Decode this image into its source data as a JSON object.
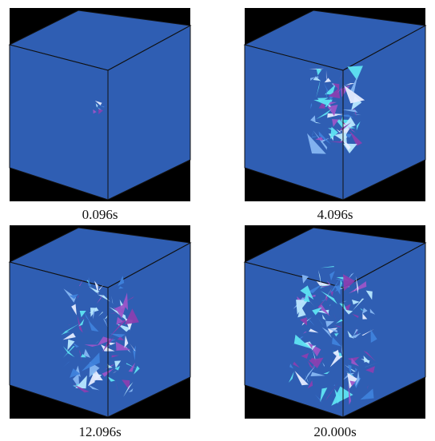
{
  "panels": [
    {
      "label": "0.096s"
    },
    {
      "label": "4.096s"
    },
    {
      "label": "12.096s"
    },
    {
      "label": "20.000s"
    }
  ]
}
